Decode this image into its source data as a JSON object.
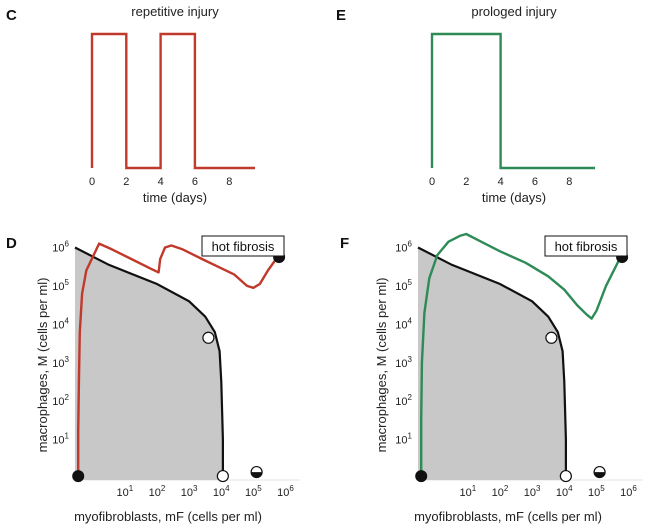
{
  "colors": {
    "red": "#c0392b",
    "green": "#2e8b57",
    "boundary": "#111111",
    "basin": "#c8c8c8"
  },
  "chart_data": [
    {
      "panel": "C",
      "type": "line",
      "title": "repetitive injury",
      "xlabel": "time (days)",
      "xticks": [
        "0",
        "2",
        "4",
        "6",
        "8"
      ],
      "xlim": [
        0,
        9.5
      ],
      "series": [
        {
          "color": "red",
          "x": [
            0,
            0,
            2,
            2,
            4,
            4,
            6,
            6,
            9.5
          ],
          "y": [
            0,
            1,
            1,
            0,
            0,
            1,
            1,
            0,
            0
          ]
        }
      ]
    },
    {
      "panel": "E",
      "type": "line",
      "title": "prologed injury",
      "xlabel": "time (days)",
      "xticks": [
        "0",
        "2",
        "4",
        "6",
        "8"
      ],
      "xlim": [
        0,
        9.5
      ],
      "series": [
        {
          "color": "green",
          "x": [
            0,
            0,
            4,
            4,
            9.5
          ],
          "y": [
            0,
            1,
            1,
            0,
            0
          ]
        }
      ]
    },
    {
      "panel": "D",
      "type": "line",
      "xlabel": "myofibroblasts, mF (cells per ml)",
      "ylabel": "macrophages, M (cells per ml)",
      "xscale": "log",
      "yscale": "log",
      "xlim": [
        -0.55,
        6.45
      ],
      "ylim": [
        -0.05,
        6.35
      ],
      "xticks": [
        {
          "v": 1,
          "t": "10"
        },
        {
          "v": 2,
          "t": "10"
        },
        {
          "v": 3,
          "t": "10"
        },
        {
          "v": 4,
          "t": "10"
        },
        {
          "v": 5,
          "t": "10"
        },
        {
          "v": 6,
          "t": "10"
        }
      ],
      "yticks": [
        {
          "v": 1,
          "t": "10"
        },
        {
          "v": 2,
          "t": "10"
        },
        {
          "v": 3,
          "t": "10"
        },
        {
          "v": 4,
          "t": "10"
        },
        {
          "v": 5,
          "t": "10"
        },
        {
          "v": 6,
          "t": "10"
        }
      ],
      "tick_exponents": [
        "1",
        "2",
        "3",
        "4",
        "5",
        "6"
      ],
      "separatrix": {
        "x": [
          -0.55,
          0.5,
          2.0,
          3.0,
          3.5,
          3.8,
          3.95,
          4.0,
          4.05,
          4.05
        ],
        "y": [
          6.0,
          5.55,
          5.05,
          4.6,
          4.2,
          3.8,
          3.3,
          2.5,
          1.0,
          -0.05
        ]
      },
      "trajectory": {
        "color": "red",
        "x": [
          -0.45,
          -0.45,
          -0.43,
          -0.4,
          -0.33,
          -0.2,
          0.2,
          0.6,
          1.2,
          1.8,
          2.05,
          2.1,
          2.25,
          2.45,
          2.8,
          3.4,
          3.9,
          4.4,
          4.8,
          5.0,
          5.2,
          5.45,
          5.75
        ],
        "y": [
          0.05,
          1.2,
          2.5,
          3.8,
          4.8,
          5.4,
          6.1,
          5.95,
          5.7,
          5.45,
          5.35,
          5.7,
          6.0,
          6.05,
          5.95,
          5.7,
          5.5,
          5.3,
          5.0,
          4.95,
          5.05,
          5.4,
          5.75
        ]
      },
      "fixed_points": [
        {
          "x": -0.45,
          "y": 0.0,
          "kind": "stable"
        },
        {
          "x": 3.6,
          "y": 3.65,
          "kind": "saddle"
        },
        {
          "x": 4.05,
          "y": 0.0,
          "kind": "saddle"
        },
        {
          "x": 5.1,
          "y": 0.0,
          "kind": "half"
        },
        {
          "x": 5.8,
          "y": 5.75,
          "kind": "stable"
        }
      ],
      "annotation": "hot fibrosis"
    },
    {
      "panel": "F",
      "type": "line",
      "xlabel": "myofibroblasts, mF (cells per ml)",
      "ylabel": "macrophages, M (cells per ml)",
      "xscale": "log",
      "yscale": "log",
      "xlim": [
        -0.55,
        6.45
      ],
      "ylim": [
        -0.05,
        6.35
      ],
      "xticks": [
        {
          "v": 1,
          "t": "10"
        },
        {
          "v": 2,
          "t": "10"
        },
        {
          "v": 3,
          "t": "10"
        },
        {
          "v": 4,
          "t": "10"
        },
        {
          "v": 5,
          "t": "10"
        },
        {
          "v": 6,
          "t": "10"
        }
      ],
      "yticks": [
        {
          "v": 1,
          "t": "10"
        },
        {
          "v": 2,
          "t": "10"
        },
        {
          "v": 3,
          "t": "10"
        },
        {
          "v": 4,
          "t": "10"
        },
        {
          "v": 5,
          "t": "10"
        },
        {
          "v": 6,
          "t": "10"
        }
      ],
      "tick_exponents": [
        "1",
        "2",
        "3",
        "4",
        "5",
        "6"
      ],
      "separatrix": {
        "x": [
          -0.55,
          0.5,
          2.0,
          3.0,
          3.5,
          3.8,
          3.95,
          4.0,
          4.05,
          4.05
        ],
        "y": [
          6.0,
          5.55,
          5.05,
          4.6,
          4.2,
          3.8,
          3.3,
          2.5,
          1.0,
          -0.05
        ]
      },
      "trajectory": {
        "color": "green",
        "x": [
          -0.45,
          -0.45,
          -0.43,
          -0.35,
          -0.2,
          0.05,
          0.4,
          0.75,
          0.95,
          1.3,
          2.0,
          2.8,
          3.5,
          4.0,
          4.4,
          4.7,
          4.85,
          5.0,
          5.3,
          5.75
        ],
        "y": [
          0.05,
          1.5,
          3.0,
          4.3,
          5.2,
          5.8,
          6.15,
          6.3,
          6.35,
          6.2,
          5.9,
          5.6,
          5.25,
          4.9,
          4.5,
          4.25,
          4.15,
          4.35,
          5.0,
          5.75
        ]
      },
      "fixed_points": [
        {
          "x": -0.45,
          "y": 0.0,
          "kind": "stable"
        },
        {
          "x": 3.6,
          "y": 3.65,
          "kind": "saddle"
        },
        {
          "x": 4.05,
          "y": 0.0,
          "kind": "saddle"
        },
        {
          "x": 5.1,
          "y": 0.0,
          "kind": "half"
        },
        {
          "x": 5.8,
          "y": 5.75,
          "kind": "stable"
        }
      ],
      "annotation": "hot fibrosis"
    }
  ]
}
